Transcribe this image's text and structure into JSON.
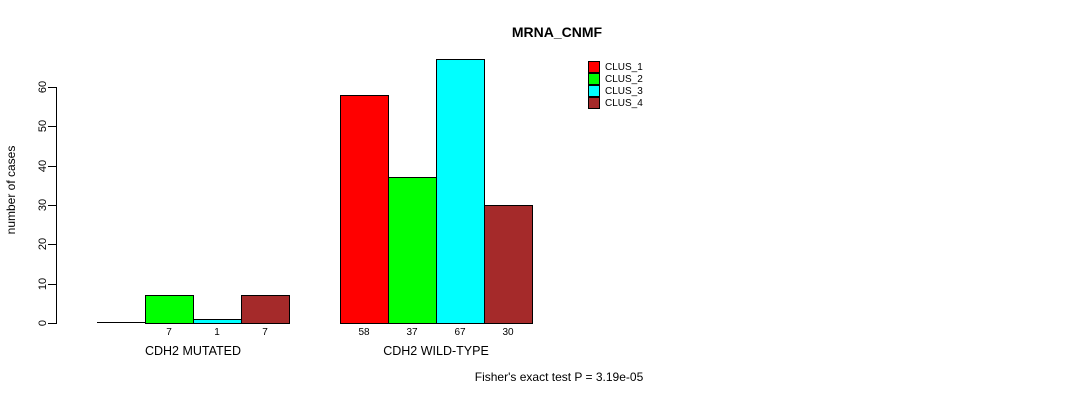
{
  "chart_data": {
    "type": "bar",
    "title": "MRNA_CNMF",
    "xlabel": "",
    "ylabel": "number of cases",
    "ylim": [
      0,
      67
    ],
    "yticks": [
      0,
      10,
      20,
      30,
      40,
      50,
      60
    ],
    "grid": false,
    "legend_position": "top-right",
    "categories": [
      "CDH2 MUTATED",
      "CDH2 WILD-TYPE"
    ],
    "series": [
      {
        "name": "CLUS_1",
        "color": "#FF0000",
        "values": [
          0,
          58
        ]
      },
      {
        "name": "CLUS_2",
        "color": "#00FF00",
        "values": [
          7,
          37
        ]
      },
      {
        "name": "CLUS_3",
        "color": "#00FFFF",
        "values": [
          1,
          67
        ]
      },
      {
        "name": "CLUS_4",
        "color": "#A52A2A",
        "values": [
          7,
          30
        ]
      }
    ],
    "bar_value_labels": [
      [
        "",
        "7",
        "1",
        "7"
      ],
      [
        "58",
        "37",
        "67",
        "30"
      ]
    ],
    "annotation": "Fisher's exact test P = 3.19e-05",
    "colors": {
      "background": "#FFFFFF",
      "axis": "#000000",
      "bar_border": "#000000",
      "text": "#000000"
    }
  }
}
